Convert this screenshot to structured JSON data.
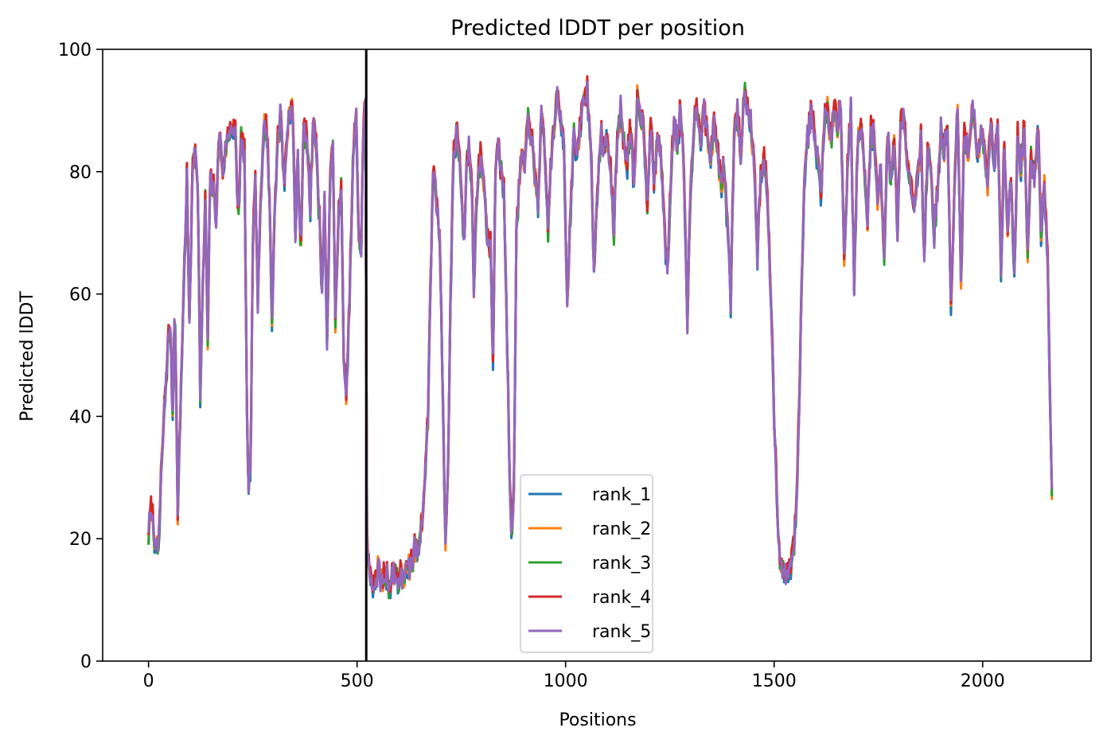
{
  "chart_data": {
    "type": "line",
    "title": "Predicted lDDT per position",
    "xlabel": "Positions",
    "ylabel": "Predicted lDDT",
    "xlim": [
      -110,
      2260
    ],
    "ylim": [
      0,
      100
    ],
    "xticks": [
      0,
      500,
      1000,
      1500,
      2000
    ],
    "yticks": [
      0,
      20,
      40,
      60,
      80,
      100
    ],
    "grid": false,
    "legend_position": "lower-center",
    "vline": {
      "x": 522,
      "color": "#000000"
    },
    "base_profile": [
      [
        0,
        21
      ],
      [
        8,
        25
      ],
      [
        12,
        22
      ],
      [
        18,
        17
      ],
      [
        25,
        20
      ],
      [
        30,
        30
      ],
      [
        38,
        41
      ],
      [
        45,
        50
      ],
      [
        52,
        55
      ],
      [
        58,
        40
      ],
      [
        63,
        60
      ],
      [
        70,
        24
      ],
      [
        78,
        45
      ],
      [
        85,
        63
      ],
      [
        92,
        79
      ],
      [
        98,
        55
      ],
      [
        105,
        80
      ],
      [
        112,
        84
      ],
      [
        118,
        78
      ],
      [
        124,
        44
      ],
      [
        130,
        60
      ],
      [
        136,
        76
      ],
      [
        142,
        52
      ],
      [
        148,
        80
      ],
      [
        155,
        77
      ],
      [
        162,
        73
      ],
      [
        170,
        86
      ],
      [
        178,
        80
      ],
      [
        185,
        84
      ],
      [
        192,
        86
      ],
      [
        200,
        88
      ],
      [
        208,
        86
      ],
      [
        215,
        72
      ],
      [
        222,
        85
      ],
      [
        230,
        83
      ],
      [
        236,
        40
      ],
      [
        240,
        29
      ],
      [
        245,
        30
      ],
      [
        250,
        68
      ],
      [
        256,
        79
      ],
      [
        262,
        57
      ],
      [
        268,
        74
      ],
      [
        275,
        87
      ],
      [
        282,
        88
      ],
      [
        290,
        76
      ],
      [
        296,
        55
      ],
      [
        302,
        73
      ],
      [
        310,
        85
      ],
      [
        318,
        90
      ],
      [
        325,
        77
      ],
      [
        332,
        86
      ],
      [
        338,
        90
      ],
      [
        345,
        91
      ],
      [
        352,
        70
      ],
      [
        358,
        82
      ],
      [
        365,
        67
      ],
      [
        372,
        87
      ],
      [
        380,
        85
      ],
      [
        388,
        74
      ],
      [
        395,
        90
      ],
      [
        402,
        84
      ],
      [
        410,
        72
      ],
      [
        416,
        60
      ],
      [
        422,
        76
      ],
      [
        428,
        50
      ],
      [
        435,
        80
      ],
      [
        442,
        83
      ],
      [
        448,
        56
      ],
      [
        455,
        72
      ],
      [
        462,
        77
      ],
      [
        468,
        51
      ],
      [
        474,
        42
      ],
      [
        480,
        55
      ],
      [
        486,
        70
      ],
      [
        492,
        85
      ],
      [
        498,
        88
      ],
      [
        504,
        70
      ],
      [
        510,
        66
      ],
      [
        515,
        88
      ],
      [
        520,
        91
      ],
      [
        524,
        19
      ],
      [
        530,
        14
      ],
      [
        540,
        13
      ],
      [
        550,
        15
      ],
      [
        560,
        13
      ],
      [
        570,
        14
      ],
      [
        580,
        12
      ],
      [
        590,
        15
      ],
      [
        600,
        13
      ],
      [
        610,
        14
      ],
      [
        620,
        14
      ],
      [
        630,
        16
      ],
      [
        640,
        18
      ],
      [
        650,
        20
      ],
      [
        660,
        26
      ],
      [
        670,
        40
      ],
      [
        680,
        75
      ],
      [
        686,
        80
      ],
      [
        692,
        73
      ],
      [
        698,
        70
      ],
      [
        705,
        46
      ],
      [
        712,
        19
      ],
      [
        718,
        30
      ],
      [
        724,
        60
      ],
      [
        732,
        84
      ],
      [
        740,
        86
      ],
      [
        748,
        80
      ],
      [
        756,
        67
      ],
      [
        762,
        80
      ],
      [
        768,
        84
      ],
      [
        775,
        78
      ],
      [
        780,
        61
      ],
      [
        786,
        74
      ],
      [
        792,
        80
      ],
      [
        798,
        83
      ],
      [
        805,
        77
      ],
      [
        812,
        70
      ],
      [
        820,
        67
      ],
      [
        826,
        49
      ],
      [
        832,
        81
      ],
      [
        838,
        85
      ],
      [
        845,
        80
      ],
      [
        852,
        78
      ],
      [
        858,
        60
      ],
      [
        864,
        36
      ],
      [
        870,
        20
      ],
      [
        876,
        28
      ],
      [
        882,
        70
      ],
      [
        890,
        79
      ],
      [
        896,
        83
      ],
      [
        902,
        80
      ],
      [
        910,
        89
      ],
      [
        918,
        86
      ],
      [
        926,
        79
      ],
      [
        934,
        75
      ],
      [
        942,
        89
      ],
      [
        950,
        83
      ],
      [
        958,
        71
      ],
      [
        965,
        82
      ],
      [
        972,
        87
      ],
      [
        980,
        92
      ],
      [
        988,
        89
      ],
      [
        996,
        85
      ],
      [
        1004,
        58
      ],
      [
        1012,
        74
      ],
      [
        1020,
        86
      ],
      [
        1028,
        82
      ],
      [
        1036,
        88
      ],
      [
        1044,
        92
      ],
      [
        1052,
        93
      ],
      [
        1060,
        85
      ],
      [
        1068,
        65
      ],
      [
        1076,
        75
      ],
      [
        1084,
        87
      ],
      [
        1092,
        83
      ],
      [
        1100,
        86
      ],
      [
        1108,
        80
      ],
      [
        1116,
        70
      ],
      [
        1124,
        86
      ],
      [
        1132,
        90
      ],
      [
        1140,
        84
      ],
      [
        1148,
        82
      ],
      [
        1156,
        87
      ],
      [
        1164,
        76
      ],
      [
        1172,
        92
      ],
      [
        1180,
        90
      ],
      [
        1188,
        86
      ],
      [
        1196,
        75
      ],
      [
        1204,
        88
      ],
      [
        1212,
        78
      ],
      [
        1220,
        85
      ],
      [
        1228,
        84
      ],
      [
        1236,
        72
      ],
      [
        1244,
        63
      ],
      [
        1252,
        78
      ],
      [
        1260,
        88
      ],
      [
        1268,
        85
      ],
      [
        1276,
        90
      ],
      [
        1284,
        80
      ],
      [
        1292,
        56
      ],
      [
        1300,
        78
      ],
      [
        1308,
        88
      ],
      [
        1316,
        90
      ],
      [
        1324,
        86
      ],
      [
        1332,
        91
      ],
      [
        1340,
        85
      ],
      [
        1348,
        82
      ],
      [
        1356,
        88
      ],
      [
        1364,
        84
      ],
      [
        1372,
        78
      ],
      [
        1380,
        80
      ],
      [
        1388,
        72
      ],
      [
        1396,
        58
      ],
      [
        1404,
        86
      ],
      [
        1412,
        90
      ],
      [
        1420,
        82
      ],
      [
        1428,
        93
      ],
      [
        1436,
        91
      ],
      [
        1444,
        88
      ],
      [
        1452,
        82
      ],
      [
        1460,
        66
      ],
      [
        1468,
        80
      ],
      [
        1476,
        82
      ],
      [
        1484,
        76
      ],
      [
        1492,
        60
      ],
      [
        1500,
        40
      ],
      [
        1510,
        20
      ],
      [
        1520,
        15
      ],
      [
        1530,
        14
      ],
      [
        1540,
        16
      ],
      [
        1548,
        18
      ],
      [
        1556,
        30
      ],
      [
        1564,
        55
      ],
      [
        1572,
        76
      ],
      [
        1580,
        85
      ],
      [
        1588,
        89
      ],
      [
        1596,
        86
      ],
      [
        1604,
        82
      ],
      [
        1612,
        76
      ],
      [
        1620,
        88
      ],
      [
        1628,
        90
      ],
      [
        1636,
        84
      ],
      [
        1644,
        92
      ],
      [
        1652,
        88
      ],
      [
        1660,
        90
      ],
      [
        1668,
        66
      ],
      [
        1676,
        80
      ],
      [
        1684,
        90
      ],
      [
        1692,
        62
      ],
      [
        1700,
        84
      ],
      [
        1708,
        88
      ],
      [
        1716,
        80
      ],
      [
        1724,
        72
      ],
      [
        1732,
        87
      ],
      [
        1740,
        85
      ],
      [
        1748,
        76
      ],
      [
        1756,
        80
      ],
      [
        1764,
        66
      ],
      [
        1772,
        86
      ],
      [
        1780,
        78
      ],
      [
        1788,
        86
      ],
      [
        1796,
        70
      ],
      [
        1804,
        90
      ],
      [
        1812,
        88
      ],
      [
        1820,
        82
      ],
      [
        1828,
        78
      ],
      [
        1836,
        74
      ],
      [
        1844,
        80
      ],
      [
        1852,
        85
      ],
      [
        1860,
        66
      ],
      [
        1868,
        84
      ],
      [
        1876,
        80
      ],
      [
        1884,
        70
      ],
      [
        1892,
        77
      ],
      [
        1900,
        87
      ],
      [
        1908,
        83
      ],
      [
        1916,
        88
      ],
      [
        1924,
        57
      ],
      [
        1932,
        76
      ],
      [
        1940,
        90
      ],
      [
        1948,
        62
      ],
      [
        1956,
        86
      ],
      [
        1964,
        83
      ],
      [
        1972,
        88
      ],
      [
        1980,
        90
      ],
      [
        1988,
        82
      ],
      [
        1996,
        86
      ],
      [
        2004,
        84
      ],
      [
        2012,
        78
      ],
      [
        2020,
        88
      ],
      [
        2028,
        80
      ],
      [
        2036,
        88
      ],
      [
        2044,
        64
      ],
      [
        2052,
        85
      ],
      [
        2060,
        70
      ],
      [
        2068,
        80
      ],
      [
        2076,
        62
      ],
      [
        2084,
        86
      ],
      [
        2092,
        80
      ],
      [
        2100,
        88
      ],
      [
        2108,
        66
      ],
      [
        2116,
        84
      ],
      [
        2124,
        78
      ],
      [
        2132,
        88
      ],
      [
        2140,
        70
      ],
      [
        2148,
        78
      ],
      [
        2156,
        65
      ],
      [
        2162,
        42
      ],
      [
        2166,
        28
      ]
    ],
    "series": [
      {
        "name": "rank_1",
        "color": "#1f77b4"
      },
      {
        "name": "rank_2",
        "color": "#ff7f0e"
      },
      {
        "name": "rank_3",
        "color": "#2ca02c"
      },
      {
        "name": "rank_4",
        "color": "#d62728"
      },
      {
        "name": "rank_5",
        "color": "#9467bd"
      }
    ]
  }
}
